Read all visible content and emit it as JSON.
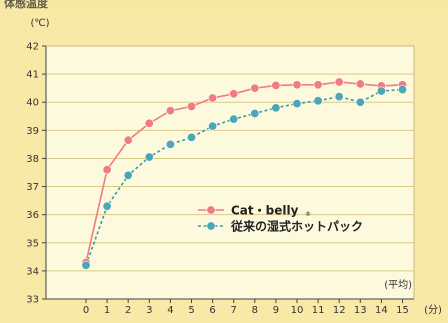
{
  "heading_fragment": "体感温度",
  "chart_data": {
    "type": "line",
    "y_unit": "(℃)",
    "x_unit": "(分)",
    "note": "(平均)",
    "categories": [
      "0",
      "1",
      "2",
      "3",
      "4",
      "5",
      "6",
      "7",
      "8",
      "9",
      "10",
      "11",
      "12",
      "13",
      "14",
      "15"
    ],
    "x": [
      0,
      1,
      2,
      3,
      4,
      5,
      6,
      7,
      8,
      9,
      10,
      11,
      12,
      13,
      14,
      15
    ],
    "ylim": [
      33,
      42
    ],
    "yticks": [
      33,
      34,
      35,
      36,
      37,
      38,
      39,
      40,
      41,
      42
    ],
    "grid": true,
    "legend_position": "right",
    "series": [
      {
        "name": "Cat・belly",
        "trademark": "®",
        "line_color": "#f07b84",
        "marker_color": "#f07b84",
        "line_style": "solid",
        "values": [
          34.3,
          37.6,
          38.65,
          39.25,
          39.7,
          39.85,
          40.15,
          40.3,
          40.5,
          40.6,
          40.62,
          40.62,
          40.72,
          40.65,
          40.58,
          40.62
        ]
      },
      {
        "name": "従来の湿式ホットパック",
        "line_color": "#3a9aa8",
        "marker_color": "#4ba7b5",
        "line_style": "dashed",
        "values": [
          34.2,
          36.3,
          37.4,
          38.05,
          38.5,
          38.75,
          39.15,
          39.4,
          39.6,
          39.8,
          39.95,
          40.05,
          40.2,
          40.0,
          40.4,
          40.45
        ]
      }
    ]
  }
}
